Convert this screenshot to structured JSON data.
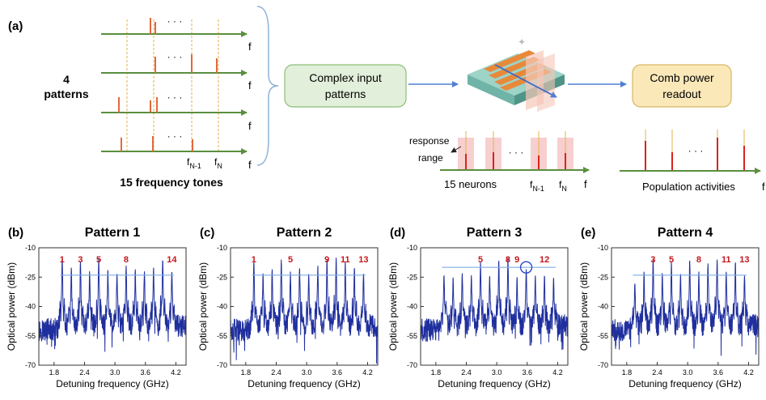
{
  "top": {
    "panel_label": "(a)",
    "patterns_count": "4",
    "patterns_word": "patterns",
    "tones_caption": "15 frequency tones",
    "axis_f": "f",
    "tone_n1_main": "f",
    "tone_n1_sub": "N-1",
    "tone_n_main": "f",
    "tone_n_sub": "N",
    "ellipsis": "· · ·",
    "box_input_line1": "Complex input",
    "box_input_line2": "patterns",
    "box_readout_line1": "Comb power",
    "box_readout_line2": "readout",
    "response_label": "response",
    "range_label": "range",
    "neurons_caption": "15 neurons",
    "population_caption": "Population activities",
    "colors": {
      "axis_green": "#5a8f3e",
      "tone_orange": "#e2683c",
      "guide_gold": "#e6b24a",
      "input_box_fill": "#e2efda",
      "input_box_stroke": "#8bbf78",
      "readout_box_fill": "#fbe8b9",
      "readout_box_stroke": "#d7b765",
      "neuron_red": "#d9241d",
      "range_pink": "#f7cfcf",
      "arrow_blue": "#4f7fd6"
    }
  },
  "chart_data": [
    {
      "type": "line",
      "panel_label": "(b)",
      "title": "Pattern 1",
      "xlabel": "Detuning frequency (GHz)",
      "ylabel": "Optical power (dBm)",
      "xlim": [
        1.5,
        4.4
      ],
      "ylim": [
        -70,
        -10
      ],
      "xticks": [
        1.8,
        2.4,
        3.0,
        3.6,
        4.2
      ],
      "xtick_labels": [
        "1.8",
        "2.4",
        "3.0",
        "3.6",
        "4.2"
      ],
      "yticks": [
        -10,
        -25,
        -40,
        -55,
        -70
      ],
      "ytick_labels": [
        "-10",
        "-25",
        "-40",
        "-55",
        "-70"
      ],
      "threshold": -24,
      "peak_labels": [
        "1",
        "3",
        "5",
        "8",
        "14"
      ],
      "peaks_x": [
        1.96,
        2.14,
        2.32,
        2.5,
        2.68,
        2.86,
        3.04,
        3.22,
        3.4,
        3.58,
        3.76,
        3.94,
        4.12
      ],
      "peaks_y": [
        -15,
        -20,
        -17,
        -22,
        -15,
        -21,
        -23,
        -19,
        -21,
        -22,
        -20,
        -16,
        -22
      ]
    },
    {
      "type": "line",
      "panel_label": "(c)",
      "title": "Pattern 2",
      "xlabel": "Detuning frequency (GHz)",
      "ylabel": "Optical power (dBm)",
      "xlim": [
        1.5,
        4.4
      ],
      "ylim": [
        -70,
        -10
      ],
      "xticks": [
        1.8,
        2.4,
        3.0,
        3.6,
        4.2
      ],
      "xtick_labels": [
        "1.8",
        "2.4",
        "3.0",
        "3.6",
        "4.2"
      ],
      "yticks": [
        -10,
        -25,
        -40,
        -55,
        -70
      ],
      "ytick_labels": [
        "-10",
        "-25",
        "-40",
        "-55",
        "-70"
      ],
      "threshold": -24,
      "peak_labels": [
        "1",
        "5",
        "9",
        "11",
        "13"
      ],
      "peaks_x": [
        1.96,
        2.14,
        2.32,
        2.5,
        2.68,
        2.86,
        3.04,
        3.22,
        3.4,
        3.58,
        3.76,
        3.94,
        4.12
      ],
      "peaks_y": [
        -17,
        -23,
        -21,
        -16,
        -22,
        -20,
        -23,
        -19,
        -16,
        -15,
        -17,
        -20,
        -23
      ]
    },
    {
      "type": "line",
      "panel_label": "(d)",
      "title": "Pattern 3",
      "xlabel": "Detuning frequency (GHz)",
      "ylabel": "Optical power (dBm)",
      "xlim": [
        1.5,
        4.4
      ],
      "ylim": [
        -70,
        -10
      ],
      "xticks": [
        1.8,
        2.4,
        3.0,
        3.6,
        4.2
      ],
      "xtick_labels": [
        "1.8",
        "2.4",
        "3.0",
        "3.6",
        "4.2"
      ],
      "yticks": [
        -10,
        -25,
        -40,
        -55,
        -70
      ],
      "ytick_labels": [
        "-10",
        "-25",
        "-40",
        "-55",
        "-70"
      ],
      "threshold": -20,
      "peak_labels": [
        "5",
        "8",
        "9",
        "12"
      ],
      "peaks_x": [
        1.96,
        2.14,
        2.32,
        2.5,
        2.68,
        2.86,
        3.04,
        3.22,
        3.4,
        3.58,
        3.76,
        3.94,
        4.12
      ],
      "peaks_y": [
        -24,
        -25,
        -23,
        -24,
        -17,
        -24,
        -16,
        -15,
        -25,
        -21,
        -24,
        -24,
        -25
      ]
    },
    {
      "type": "line",
      "panel_label": "(e)",
      "title": "Pattern 4",
      "xlabel": "Detuning frequency (GHz)",
      "ylabel": "Optical power (dBm)",
      "xlim": [
        1.5,
        4.4
      ],
      "ylim": [
        -70,
        -10
      ],
      "xticks": [
        1.8,
        2.4,
        3.0,
        3.6,
        4.2
      ],
      "xtick_labels": [
        "1.8",
        "2.4",
        "3.0",
        "3.6",
        "4.2"
      ],
      "yticks": [
        -10,
        -25,
        -40,
        -55,
        -70
      ],
      "ytick_labels": [
        "-10",
        "-25",
        "-40",
        "-55",
        "-70"
      ],
      "threshold": -24,
      "peak_labels": [
        "3",
        "5",
        "8",
        "11",
        "13"
      ],
      "peaks_x": [
        1.96,
        2.14,
        2.32,
        2.5,
        2.68,
        2.86,
        3.04,
        3.22,
        3.4,
        3.58,
        3.76,
        3.94,
        4.12
      ],
      "peaks_y": [
        -28,
        -22,
        -16,
        -23,
        -17,
        -23,
        -16,
        -22,
        -18,
        -16,
        -22,
        -17,
        -24
      ]
    }
  ]
}
